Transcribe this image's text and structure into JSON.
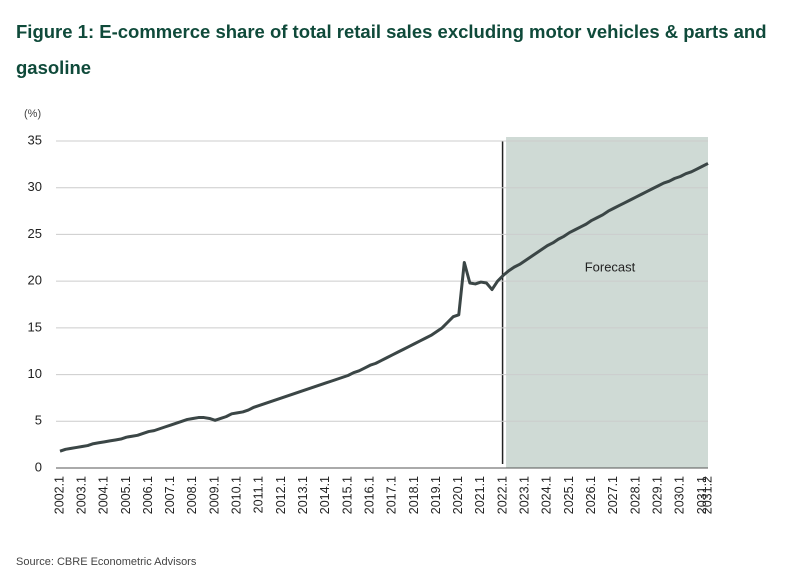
{
  "chart_data": {
    "type": "line",
    "title": "Figure 1: E-commerce share of total retail sales excluding motor vehicles & parts and gasoline",
    "y_axis_label": "(%)",
    "source": "Source: CBRE Econometric Advisors",
    "annotation": "Forecast",
    "categories": [
      "2002.1",
      null,
      null,
      null,
      "2003.1",
      null,
      null,
      null,
      "2004.1",
      null,
      null,
      null,
      "2005.1",
      null,
      null,
      null,
      "2006.1",
      null,
      null,
      null,
      "2007.1",
      null,
      null,
      null,
      "2008.1",
      null,
      null,
      null,
      "2009.1",
      null,
      null,
      null,
      "2010.1",
      null,
      null,
      null,
      "2011.1",
      null,
      null,
      null,
      "2012.1",
      null,
      null,
      null,
      "2013.1",
      null,
      null,
      null,
      "2014.1",
      null,
      null,
      null,
      "2015.1",
      null,
      null,
      null,
      "2016.1",
      null,
      null,
      null,
      "2017.1",
      null,
      null,
      null,
      "2018.1",
      null,
      null,
      null,
      "2019.1",
      null,
      null,
      null,
      "2020.1",
      null,
      null,
      null,
      "2021.1",
      null,
      null,
      null,
      "2022.1",
      null,
      null,
      null,
      "2023.1",
      null,
      null,
      null,
      "2024.1",
      null,
      null,
      null,
      "2025.1",
      null,
      null,
      null,
      "2026.1",
      null,
      null,
      null,
      "2027.1",
      null,
      null,
      null,
      "2028.1",
      null,
      null,
      null,
      "2029.1",
      null,
      null,
      null,
      "2030.1",
      null,
      null,
      null,
      "2031.1",
      "2031.2"
    ],
    "series": [
      {
        "color": "#3b4646",
        "values": [
          1.8,
          2.0,
          2.1,
          2.2,
          2.3,
          2.4,
          2.6,
          2.7,
          2.8,
          2.9,
          3.0,
          3.1,
          3.3,
          3.4,
          3.5,
          3.7,
          3.9,
          4.0,
          4.2,
          4.4,
          4.6,
          4.8,
          5.0,
          5.2,
          5.3,
          5.4,
          5.4,
          5.3,
          5.1,
          5.3,
          5.5,
          5.8,
          5.9,
          6.0,
          6.2,
          6.5,
          6.7,
          6.9,
          7.1,
          7.3,
          7.5,
          7.7,
          7.9,
          8.1,
          8.3,
          8.5,
          8.7,
          8.9,
          9.1,
          9.3,
          9.5,
          9.7,
          9.9,
          10.2,
          10.4,
          10.7,
          11.0,
          11.2,
          11.5,
          11.8,
          12.1,
          12.4,
          12.7,
          13.0,
          13.3,
          13.6,
          13.9,
          14.2,
          14.6,
          15.0,
          15.6,
          16.2,
          16.4,
          22.0,
          19.8,
          19.7,
          19.9,
          19.8,
          19.1,
          20.0,
          20.6,
          21.1,
          21.5,
          21.8,
          22.2,
          22.6,
          23.0,
          23.4,
          23.8,
          24.1,
          24.5,
          24.8,
          25.2,
          25.5,
          25.8,
          26.1,
          26.5,
          26.8,
          27.1,
          27.5,
          27.8,
          28.1,
          28.4,
          28.7,
          29.0,
          29.3,
          29.6,
          29.9,
          30.2,
          30.5,
          30.7,
          31.0,
          31.2,
          31.5,
          31.7,
          32.0,
          32.3,
          32.6
        ]
      }
    ],
    "ylim": [
      0,
      35
    ],
    "yticks": [
      0,
      5,
      10,
      15,
      20,
      25,
      30,
      35
    ],
    "grid": true,
    "forecast_color": "#cfdad5"
  }
}
